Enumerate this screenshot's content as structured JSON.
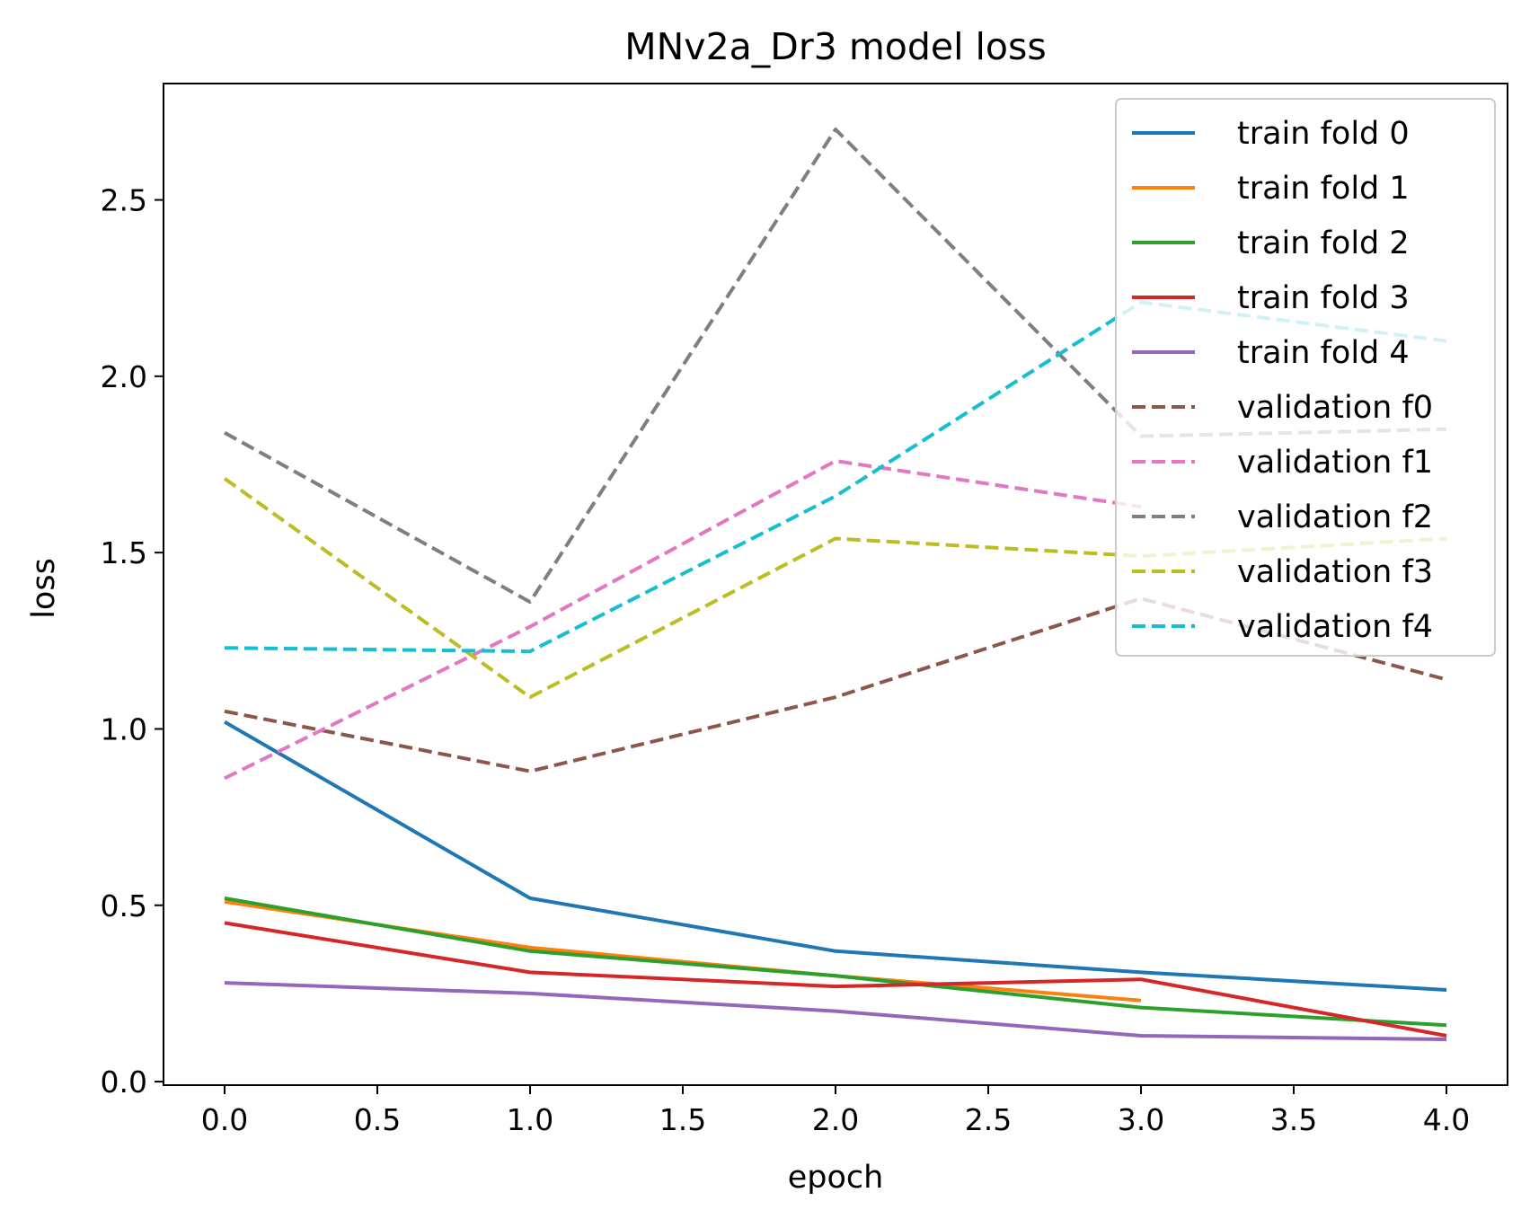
{
  "chart_data": {
    "type": "line",
    "title": "MNv2a_Dr3 model loss",
    "xlabel": "epoch",
    "ylabel": "loss",
    "xlim": [
      -0.2,
      4.2
    ],
    "ylim": [
      -0.01,
      2.83
    ],
    "xticks": [
      0.0,
      0.5,
      1.0,
      1.5,
      2.0,
      2.5,
      3.0,
      3.5,
      4.0
    ],
    "xtick_labels": [
      "0.0",
      "0.5",
      "1.0",
      "1.5",
      "2.0",
      "2.5",
      "3.0",
      "3.5",
      "4.0"
    ],
    "yticks": [
      0.0,
      0.5,
      1.0,
      1.5,
      2.0,
      2.5
    ],
    "ytick_labels": [
      "0.0",
      "0.5",
      "1.0",
      "1.5",
      "2.0",
      "2.5"
    ],
    "grid": false,
    "legend_position": "top-right",
    "series": [
      {
        "name": "train fold 0",
        "color": "#1f77b4",
        "style": "solid",
        "x": [
          0,
          1,
          2,
          3,
          4
        ],
        "values": [
          1.02,
          0.52,
          0.37,
          0.31,
          0.26
        ]
      },
      {
        "name": "train fold 1",
        "color": "#ff7f0e",
        "style": "solid",
        "x": [
          0,
          1,
          2,
          3
        ],
        "values": [
          0.51,
          0.38,
          0.3,
          0.23
        ]
      },
      {
        "name": "train fold 2",
        "color": "#2ca02c",
        "style": "solid",
        "x": [
          0,
          1,
          2,
          3,
          4
        ],
        "values": [
          0.52,
          0.37,
          0.3,
          0.21,
          0.16
        ]
      },
      {
        "name": "train fold 3",
        "color": "#d62728",
        "style": "solid",
        "x": [
          0,
          1,
          2,
          3,
          4
        ],
        "values": [
          0.45,
          0.31,
          0.27,
          0.29,
          0.13
        ]
      },
      {
        "name": "train fold 4",
        "color": "#9467bd",
        "style": "solid",
        "x": [
          0,
          1,
          2,
          3,
          4
        ],
        "values": [
          0.28,
          0.25,
          0.2,
          0.13,
          0.12
        ]
      },
      {
        "name": "validation f0",
        "color": "#8c564b",
        "style": "dashed",
        "x": [
          0,
          1,
          2,
          3,
          4
        ],
        "values": [
          1.05,
          0.88,
          1.09,
          1.37,
          1.14
        ]
      },
      {
        "name": "validation f1",
        "color": "#e377c2",
        "style": "dashed",
        "x": [
          0,
          1,
          2,
          3
        ],
        "values": [
          0.86,
          1.29,
          1.76,
          1.63
        ]
      },
      {
        "name": "validation f2",
        "color": "#7f7f7f",
        "style": "dashed",
        "x": [
          0,
          1,
          2,
          3,
          4
        ],
        "values": [
          1.84,
          1.36,
          2.7,
          1.83,
          1.85
        ]
      },
      {
        "name": "validation f3",
        "color": "#bcbd22",
        "style": "dashed",
        "x": [
          0,
          1,
          2,
          3,
          4
        ],
        "values": [
          1.71,
          1.09,
          1.54,
          1.49,
          1.54
        ]
      },
      {
        "name": "validation f4",
        "color": "#17becf",
        "style": "dashed",
        "x": [
          0,
          1,
          2,
          3,
          4
        ],
        "values": [
          1.23,
          1.22,
          1.66,
          2.21,
          2.1
        ]
      }
    ]
  }
}
